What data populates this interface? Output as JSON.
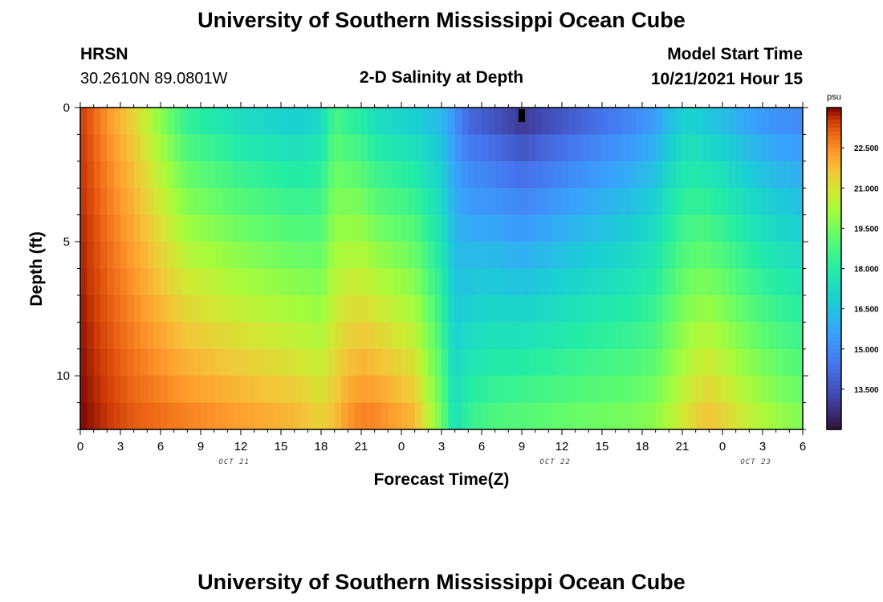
{
  "page": {
    "title": "University of Southern Mississippi Ocean Cube",
    "footer_title": "University of Southern Mississippi Ocean Cube",
    "station_name": "HRSN",
    "station_coords": "30.2610N  89.0801W",
    "plot_title": "2-D Salinity at Depth",
    "model_start_label": "Model Start Time",
    "model_start_value": "10/21/2021 Hour 15"
  },
  "chart_data": {
    "type": "heatmap",
    "title": "2-D Salinity at Depth",
    "xlabel": "Forecast Time(Z)",
    "ylabel": "Depth (ft)",
    "x_tick_labels": [
      "0",
      "3",
      "6",
      "9",
      "12",
      "15",
      "18",
      "21",
      "0",
      "3",
      "6",
      "9",
      "12",
      "15",
      "18",
      "21",
      "0",
      "3",
      "6"
    ],
    "x_hours": [
      0,
      54
    ],
    "day_labels": [
      {
        "text": "OCT 21",
        "hour": 11.5
      },
      {
        "text": "OCT 22",
        "hour": 35.5
      },
      {
        "text": "OCT 23",
        "hour": 50.5
      }
    ],
    "y_tick_labels": [
      "0",
      "5",
      "10"
    ],
    "y_ticks": [
      0,
      5,
      10
    ],
    "ylim": [
      0,
      12
    ],
    "depth_layers": 12,
    "colorbar": {
      "unit": "psu",
      "range": [
        12.0,
        24.0
      ],
      "tick_labels": [
        "22.500",
        "21.000",
        "19.500",
        "18.000",
        "16.500",
        "15.000",
        "13.500"
      ],
      "ticks": [
        22.5,
        21.0,
        19.5,
        18.0,
        16.5,
        15.0,
        13.5
      ]
    },
    "surface_marker_hour": 33,
    "salinity_profile": {
      "hours": [
        0,
        4,
        8,
        12,
        16,
        18,
        19,
        20,
        21,
        22,
        25,
        27,
        28,
        29,
        31,
        33,
        37,
        41,
        43,
        44,
        45,
        46,
        47,
        48,
        50,
        52,
        54
      ],
      "surface_psu": [
        23.5,
        21.2,
        18.0,
        17.0,
        16.5,
        16.9,
        18.5,
        18.0,
        17.7,
        17.0,
        16.5,
        16.0,
        15.0,
        13.8,
        13.2,
        12.5,
        13.5,
        14.5,
        15.2,
        16.0,
        16.6,
        16.6,
        16.2,
        16.0,
        15.3,
        14.8,
        14.6
      ],
      "bottom_psu": [
        24.0,
        23.2,
        22.8,
        22.4,
        22.0,
        21.5,
        21.8,
        22.5,
        22.8,
        22.8,
        22.0,
        19.5,
        17.5,
        18.5,
        19.0,
        19.2,
        19.5,
        19.7,
        20.0,
        20.5,
        21.0,
        21.5,
        21.8,
        21.5,
        20.8,
        20.2,
        19.8
      ]
    }
  }
}
